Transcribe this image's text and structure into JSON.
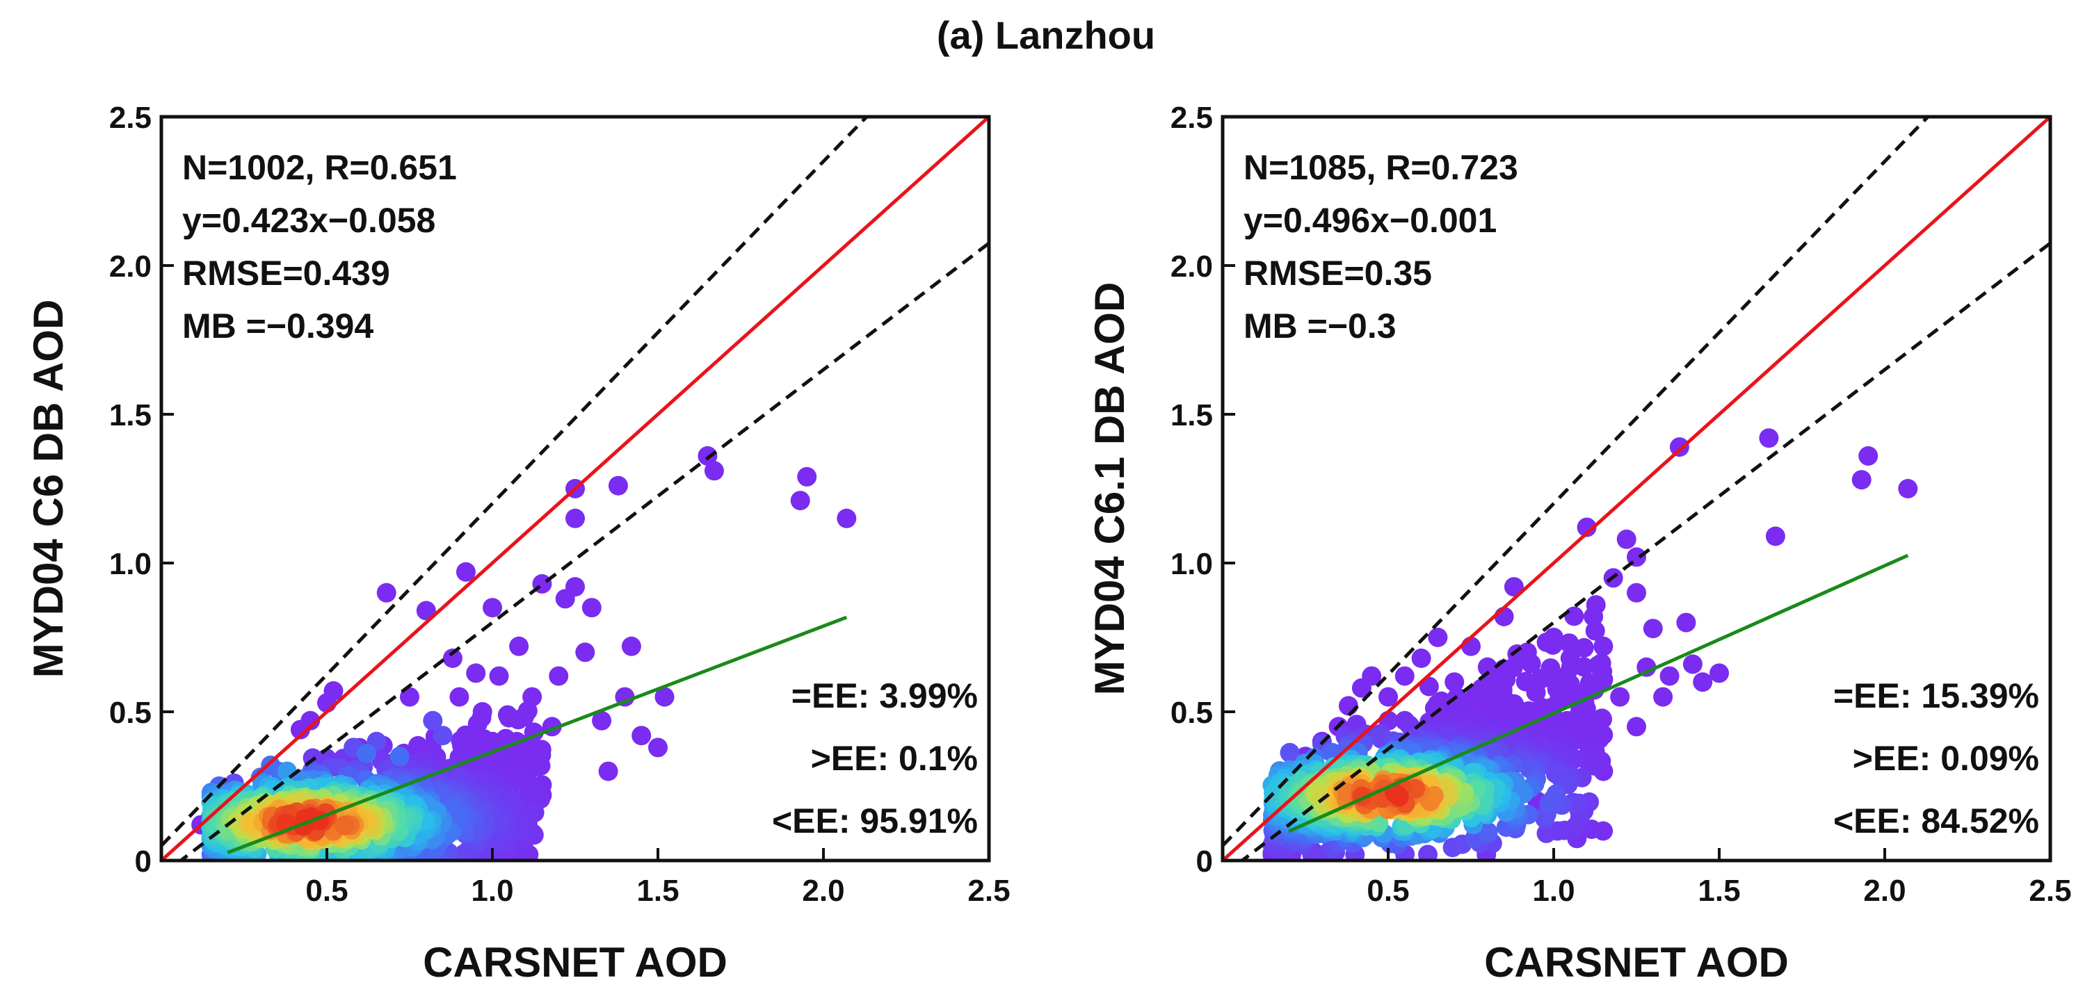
{
  "figure_title": "(a) Lanzhou",
  "colors": {
    "one_to_one": "#e8141c",
    "ee_envelope": "#111111",
    "regression": "#1a8a1a",
    "frame": "#111111",
    "density_low": "#7a2cf0",
    "density_high": "#e8301c"
  },
  "chart_data": [
    {
      "type": "scatter",
      "id": "left",
      "title": "",
      "xlabel": "CARSNET AOD",
      "ylabel": "MYD04 C6 DB AOD",
      "xlim": [
        0,
        2.5
      ],
      "ylim": [
        0,
        2.5
      ],
      "x_ticks": [
        0.5,
        1.0,
        1.5,
        2.0,
        2.5
      ],
      "x_tick_labels": [
        "0.5",
        "1.0",
        "1.5",
        "2.0",
        "2.5"
      ],
      "y_ticks": [
        0,
        0.5,
        1.0,
        1.5,
        2.0,
        2.5
      ],
      "y_tick_labels": [
        "0",
        "0.5",
        "1.0",
        "1.5",
        "2.0",
        "2.5"
      ],
      "stats": [
        "N=1002, R=0.651",
        "y=0.423x−0.058",
        "RMSE=0.439",
        "MB =−0.394"
      ],
      "ee_stats": [
        "=EE: 3.99%",
        ">EE: 0.1%",
        "<EE: 95.91%"
      ],
      "regression": {
        "slope": 0.423,
        "intercept": -0.058,
        "x_range": [
          0.2,
          2.07
        ]
      },
      "envelope": {
        "slope": 0.85,
        "offset": 0.05
      },
      "points": [
        [
          0.12,
          0.12,
          0
        ],
        [
          0.15,
          0.15,
          0
        ],
        [
          0.2,
          0.2,
          0.2
        ],
        [
          0.22,
          0.26,
          0.1
        ],
        [
          0.28,
          0.2,
          0.3
        ],
        [
          0.3,
          0.28,
          0.2
        ],
        [
          0.33,
          0.32,
          0.2
        ],
        [
          0.35,
          0.22,
          0.4
        ],
        [
          0.38,
          0.3,
          0.3
        ],
        [
          0.42,
          0.44,
          0
        ],
        [
          0.45,
          0.47,
          0
        ],
        [
          0.5,
          0.53,
          0
        ],
        [
          0.52,
          0.57,
          0
        ],
        [
          0.58,
          0.38,
          0.1
        ],
        [
          0.62,
          0.36,
          0.2
        ],
        [
          0.65,
          0.4,
          0.1
        ],
        [
          0.68,
          0.9,
          0
        ],
        [
          0.72,
          0.35,
          0.2
        ],
        [
          0.75,
          0.55,
          0
        ],
        [
          0.8,
          0.84,
          0
        ],
        [
          0.82,
          0.47,
          0.1
        ],
        [
          0.85,
          0.42,
          0.1
        ],
        [
          0.88,
          0.68,
          0
        ],
        [
          0.9,
          0.55,
          0
        ],
        [
          0.92,
          0.97,
          0
        ],
        [
          0.95,
          0.63,
          0
        ],
        [
          0.97,
          0.5,
          0
        ],
        [
          1.0,
          0.85,
          0
        ],
        [
          1.02,
          0.62,
          0
        ],
        [
          1.05,
          0.48,
          0
        ],
        [
          1.08,
          0.72,
          0
        ],
        [
          1.12,
          0.55,
          0
        ],
        [
          1.15,
          0.93,
          0
        ],
        [
          1.18,
          0.45,
          0
        ],
        [
          1.2,
          0.62,
          0
        ],
        [
          1.22,
          0.88,
          0
        ],
        [
          1.25,
          0.92,
          0
        ],
        [
          1.25,
          1.25,
          0
        ],
        [
          1.25,
          1.15,
          0
        ],
        [
          1.28,
          0.7,
          0
        ],
        [
          1.3,
          0.85,
          0
        ],
        [
          1.33,
          0.47,
          0
        ],
        [
          1.35,
          0.3,
          0
        ],
        [
          1.38,
          1.26,
          0
        ],
        [
          1.4,
          0.55,
          0
        ],
        [
          1.42,
          0.72,
          0
        ],
        [
          1.45,
          0.42,
          0
        ],
        [
          1.5,
          0.38,
          0
        ],
        [
          1.52,
          0.55,
          0
        ],
        [
          1.65,
          1.36,
          0
        ],
        [
          1.67,
          1.31,
          0
        ],
        [
          1.93,
          1.21,
          0
        ],
        [
          1.95,
          1.29,
          0
        ],
        [
          2.07,
          1.15,
          0
        ],
        [
          1.1,
          0.3,
          0
        ],
        [
          1.02,
          0.25,
          0
        ],
        [
          0.95,
          0.35,
          0
        ],
        [
          1.15,
          0.22,
          0
        ],
        [
          0.9,
          0.28,
          0.05
        ],
        [
          1.0,
          0.4,
          0
        ]
      ],
      "density_cloud": {
        "x_range": [
          0.15,
          1.15
        ],
        "y_center": [
          0.12,
          0.22
        ],
        "spread": 0.08,
        "peak": [
          0.45,
          0.13
        ],
        "count": 850,
        "seed": 7
      }
    },
    {
      "type": "scatter",
      "id": "right",
      "title": "",
      "xlabel": "CARSNET AOD",
      "ylabel": "MYD04 C6.1 DB AOD",
      "xlim": [
        0,
        2.5
      ],
      "ylim": [
        0,
        2.5
      ],
      "x_ticks": [
        0.5,
        1.0,
        1.5,
        2.0,
        2.5
      ],
      "x_tick_labels": [
        "0.5",
        "1.0",
        "1.5",
        "2.0",
        "2.5"
      ],
      "y_ticks": [
        0,
        0.5,
        1.0,
        1.5,
        2.0,
        2.5
      ],
      "y_tick_labels": [
        "0",
        "0.5",
        "1.0",
        "1.5",
        "2.0",
        "2.5"
      ],
      "stats": [
        "N=1085, R=0.723",
        "y=0.496x−0.001",
        "RMSE=0.35",
        "MB =−0.3"
      ],
      "ee_stats": [
        "=EE: 15.39%",
        ">EE: 0.09%",
        "<EE: 84.52%"
      ],
      "regression": {
        "slope": 0.496,
        "intercept": -0.001,
        "x_range": [
          0.2,
          2.07
        ]
      },
      "envelope": {
        "slope": 0.85,
        "offset": 0.05
      },
      "points": [
        [
          0.18,
          0.22,
          0
        ],
        [
          0.22,
          0.28,
          0
        ],
        [
          0.25,
          0.35,
          0
        ],
        [
          0.3,
          0.4,
          0
        ],
        [
          0.35,
          0.45,
          0
        ],
        [
          0.38,
          0.52,
          0
        ],
        [
          0.42,
          0.58,
          0
        ],
        [
          0.45,
          0.62,
          0
        ],
        [
          0.5,
          0.55,
          0
        ],
        [
          0.55,
          0.62,
          0
        ],
        [
          0.6,
          0.68,
          0
        ],
        [
          0.65,
          0.75,
          0
        ],
        [
          0.7,
          0.6,
          0
        ],
        [
          0.75,
          0.72,
          0
        ],
        [
          0.8,
          0.65,
          0
        ],
        [
          0.85,
          0.82,
          0
        ],
        [
          0.88,
          0.92,
          0
        ],
        [
          0.92,
          0.7,
          0
        ],
        [
          0.95,
          0.6,
          0
        ],
        [
          1.0,
          0.75,
          0
        ],
        [
          1.05,
          0.68,
          0
        ],
        [
          1.1,
          1.12,
          0
        ],
        [
          1.12,
          0.82,
          0
        ],
        [
          1.15,
          0.72,
          0
        ],
        [
          1.18,
          0.95,
          0
        ],
        [
          1.2,
          0.55,
          0
        ],
        [
          1.22,
          1.08,
          0
        ],
        [
          1.25,
          1.02,
          0
        ],
        [
          1.25,
          0.9,
          0
        ],
        [
          1.28,
          0.65,
          0
        ],
        [
          1.3,
          0.78,
          0
        ],
        [
          1.33,
          0.55,
          0
        ],
        [
          1.35,
          0.62,
          0
        ],
        [
          1.38,
          1.39,
          0
        ],
        [
          1.4,
          0.8,
          0
        ],
        [
          1.42,
          0.66,
          0
        ],
        [
          1.45,
          0.6,
          0
        ],
        [
          1.5,
          0.63,
          0
        ],
        [
          1.65,
          1.42,
          0
        ],
        [
          1.67,
          1.09,
          0
        ],
        [
          1.93,
          1.28,
          0
        ],
        [
          1.95,
          1.36,
          0
        ],
        [
          2.07,
          1.25,
          0
        ],
        [
          1.1,
          0.35,
          0
        ],
        [
          1.02,
          0.28,
          0
        ],
        [
          0.95,
          0.2,
          0
        ],
        [
          1.15,
          0.3,
          0
        ],
        [
          0.9,
          0.15,
          0
        ],
        [
          1.0,
          0.42,
          0
        ],
        [
          0.8,
          0.08,
          0
        ],
        [
          1.25,
          0.45,
          0
        ],
        [
          1.08,
          0.5,
          0
        ]
      ],
      "density_cloud": {
        "x_range": [
          0.15,
          1.15
        ],
        "y_center": [
          0.15,
          0.45
        ],
        "spread": 0.1,
        "peak": [
          0.5,
          0.22
        ],
        "count": 900,
        "seed": 11
      }
    }
  ]
}
